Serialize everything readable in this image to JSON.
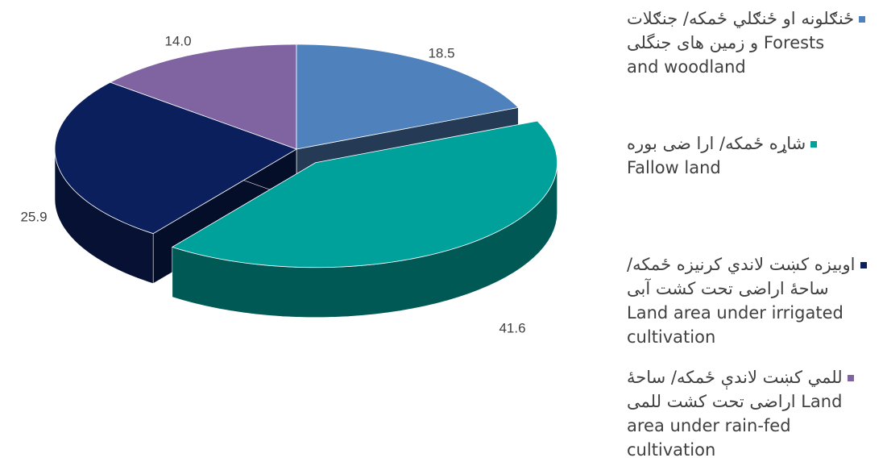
{
  "chart_data": {
    "type": "pie3d",
    "categories": [
      [
        "ځنګلونه او ځنګلي ځمکه/ جنګلات",
        "Forests و زمین های جنگلی",
        "and woodland"
      ],
      [
        "شاړه ځمکه/ ارا ضی بوره",
        "Fallow land"
      ],
      [
        "اوبیزه کښت لاندي کرنیزه ځمکه/",
        "ساحۀ اراضی تحت کشت آبی",
        "Land area under irrigated",
        "cultivation"
      ],
      [
        "للمي کښت لاندې ځمکه/ ساحۀ",
        "Land اراضی تحت کشت للمی",
        "area under rain-fed",
        "cultivation"
      ]
    ],
    "values": [
      18.5,
      41.6,
      25.9,
      14.0
    ],
    "value_labels": [
      "18.5",
      "41.6",
      "25.9",
      "14.0"
    ],
    "colors": [
      "#4f81bd",
      "#00a19a",
      "#0b1f5c",
      "#8064a2"
    ],
    "exploded": [
      false,
      true,
      false,
      false
    ]
  }
}
